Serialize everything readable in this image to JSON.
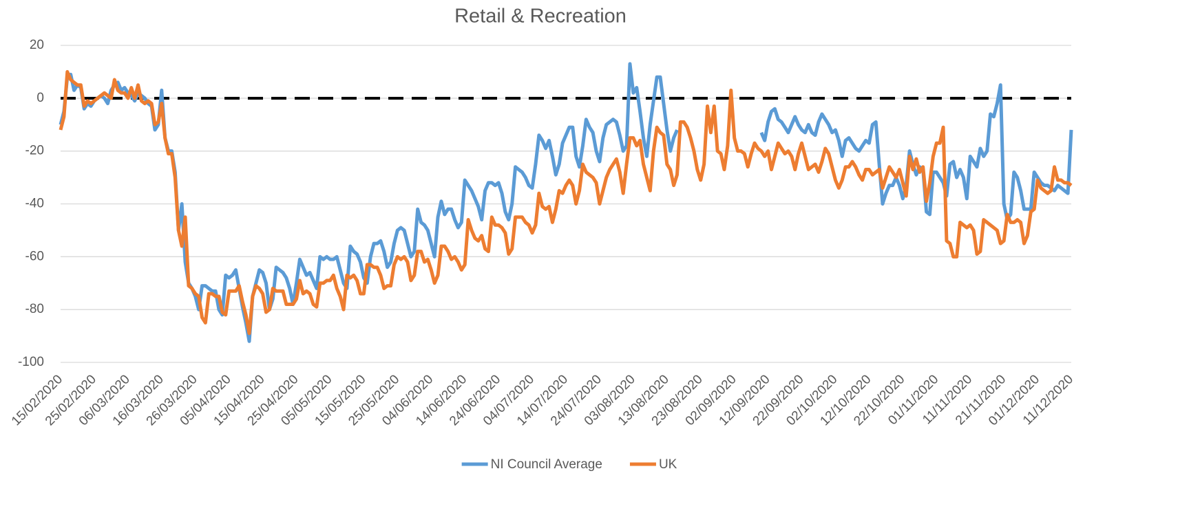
{
  "chart_data": {
    "type": "line",
    "title": "Retail & Recreation",
    "categories": [
      "15/02/2020",
      null,
      null,
      null,
      null,
      null,
      null,
      null,
      null,
      null,
      "25/02/2020",
      null,
      null,
      null,
      null,
      null,
      null,
      null,
      null,
      null,
      "06/03/2020",
      null,
      null,
      null,
      null,
      null,
      null,
      null,
      null,
      null,
      "16/03/2020",
      null,
      null,
      null,
      null,
      null,
      null,
      null,
      null,
      null,
      "26/03/2020",
      null,
      null,
      null,
      null,
      null,
      null,
      null,
      null,
      null,
      "05/04/2020",
      null,
      null,
      null,
      null,
      null,
      null,
      null,
      null,
      null,
      "15/04/2020",
      null,
      null,
      null,
      null,
      null,
      null,
      null,
      null,
      null,
      "25/04/2020",
      null,
      null,
      null,
      null,
      null,
      null,
      null,
      null,
      null,
      "05/05/2020",
      null,
      null,
      null,
      null,
      null,
      null,
      null,
      null,
      null,
      "15/05/2020",
      null,
      null,
      null,
      null,
      null,
      null,
      null,
      null,
      null,
      "25/05/2020",
      null,
      null,
      null,
      null,
      null,
      null,
      null,
      null,
      null,
      "04/06/2020",
      null,
      null,
      null,
      null,
      null,
      null,
      null,
      null,
      null,
      "14/06/2020",
      null,
      null,
      null,
      null,
      null,
      null,
      null,
      null,
      null,
      "24/06/2020",
      null,
      null,
      null,
      null,
      null,
      null,
      null,
      null,
      null,
      "04/07/2020",
      null,
      null,
      null,
      null,
      null,
      null,
      null,
      null,
      null,
      "14/07/2020",
      null,
      null,
      null,
      null,
      null,
      null,
      null,
      null,
      null,
      "24/07/2020",
      null,
      null,
      null,
      null,
      null,
      null,
      null,
      null,
      null,
      "03/08/2020",
      null,
      null,
      null,
      null,
      null,
      null,
      null,
      null,
      null,
      "13/08/2020",
      null,
      null,
      null,
      null,
      null,
      null,
      null,
      null,
      null,
      "23/08/2020",
      null,
      null,
      null,
      null,
      null,
      null,
      null,
      null,
      null,
      "02/09/2020",
      null,
      null,
      null,
      null,
      null,
      null,
      null,
      null,
      null,
      "12/09/2020",
      null,
      null,
      null,
      null,
      null,
      null,
      null,
      null,
      null,
      "22/09/2020",
      null,
      null,
      null,
      null,
      null,
      null,
      null,
      null,
      null,
      "02/10/2020",
      null,
      null,
      null,
      null,
      null,
      null,
      null,
      null,
      null,
      "12/10/2020",
      null,
      null,
      null,
      null,
      null,
      null,
      null,
      null,
      null,
      "22/10/2020",
      null,
      null,
      null,
      null,
      null,
      null,
      null,
      null,
      null,
      "01/11/2020",
      null,
      null,
      null,
      null,
      null,
      null,
      null,
      null,
      null,
      "11/11/2020",
      null,
      null,
      null,
      null,
      null,
      null,
      null,
      null,
      null,
      "21/11/2020",
      null,
      null,
      null,
      null,
      null,
      null,
      null,
      null,
      null,
      "01/12/2020",
      null,
      null,
      null,
      null,
      null,
      null,
      null,
      null,
      null,
      "11/12/2020"
    ],
    "series": [
      {
        "name": "NI Council Average",
        "color": "#5b9bd5",
        "values": [
          -10,
          -5,
          8,
          9,
          3,
          5,
          4,
          -4,
          -2,
          -3,
          -1,
          0,
          1,
          0,
          -2,
          3,
          5,
          6,
          3,
          4,
          2,
          1,
          -1,
          2,
          1,
          0,
          -2,
          -3,
          -12,
          -10,
          3,
          -15,
          -20,
          -20,
          -28,
          -50,
          -40,
          -62,
          -70,
          -72,
          -75,
          -80,
          -71,
          -71,
          -72,
          -73,
          -73,
          -80,
          -82,
          -67,
          -68,
          -67,
          -65,
          -72,
          -79,
          -85,
          -92,
          -75,
          -70,
          -65,
          -66,
          -70,
          -80,
          -76,
          -64,
          -65,
          -66,
          -68,
          -72,
          -78,
          -70,
          -61,
          -64,
          -67,
          -66,
          -69,
          -72,
          -60,
          -61,
          -60,
          -61,
          -61,
          -60,
          -65,
          -70,
          -72,
          -56,
          -58,
          -59,
          -62,
          -68,
          -70,
          -60,
          -55,
          -55,
          -54,
          -58,
          -64,
          -62,
          -55,
          -50,
          -49,
          -50,
          -55,
          -60,
          -58,
          -42,
          -47,
          -48,
          -50,
          -55,
          -60,
          -45,
          -39,
          -44,
          -42,
          -42,
          -46,
          -49,
          -47,
          -31,
          -33,
          -35,
          -38,
          -41,
          -46,
          -35,
          -32,
          -32,
          -33,
          -32,
          -36,
          -43,
          -46,
          -40,
          -26,
          -27,
          -28,
          -30,
          -33,
          -34,
          -25,
          -14,
          -16,
          -19,
          -16,
          -22,
          -29,
          -25,
          -17,
          -14,
          -11,
          -11,
          -22,
          -26,
          -18,
          -8,
          -11,
          -13,
          -20,
          -24,
          -15,
          -10,
          -9,
          -8,
          -9,
          -14,
          -20,
          -18,
          13,
          2,
          4,
          -5,
          -15,
          -22,
          -10,
          -1,
          8,
          8,
          -2,
          -12,
          -20,
          -15,
          -12,
          null,
          null,
          null,
          null,
          null,
          null,
          null,
          null,
          null,
          null,
          null,
          null,
          null,
          null,
          null,
          null,
          null,
          null,
          null,
          null,
          null,
          null,
          null,
          null,
          -13,
          -16,
          -9,
          -5,
          -4,
          -8,
          -9,
          -11,
          -13,
          -10,
          -7,
          -10,
          -12,
          -13,
          -10,
          -13,
          -14,
          -9,
          -6,
          -8,
          -10,
          -13,
          -12,
          -16,
          -22,
          -16,
          -15,
          -17,
          -19,
          -20,
          -18,
          -16,
          -17,
          -10,
          -9,
          -25,
          -40,
          -36,
          -33,
          -33,
          -30,
          -33,
          -38,
          -33,
          -20,
          -25,
          -29,
          -26,
          -27,
          -43,
          -44,
          -28,
          -28,
          -30,
          -32,
          -37,
          -25,
          -24,
          -30,
          -27,
          -30,
          -38,
          -22,
          -24,
          -26,
          -19,
          -22,
          -20,
          -6,
          -7,
          -2,
          5,
          -40,
          -46,
          -44,
          -28,
          -30,
          -35,
          -42,
          -42,
          -42,
          -28,
          -30,
          -32,
          -33,
          -33,
          -34,
          -35,
          -33,
          -34,
          -35,
          -36,
          -12
        ]
      },
      {
        "name": "UK",
        "color": "#ed7d31",
        "values": [
          -12,
          -7,
          10,
          7,
          6,
          5,
          5,
          -3,
          -1,
          -2,
          -1,
          0,
          1,
          2,
          1,
          0,
          7,
          3,
          2,
          2,
          0,
          4,
          0,
          5,
          -1,
          -2,
          -1,
          -2,
          -10,
          -9,
          -2,
          -15,
          -21,
          -21,
          -30,
          -50,
          -56,
          -45,
          -71,
          -72,
          -74,
          -75,
          -83,
          -85,
          -74,
          -74,
          -75,
          -75,
          -81,
          -82,
          -73,
          -73,
          -73,
          -71,
          -77,
          -82,
          -89,
          -75,
          -71,
          -72,
          -74,
          -81,
          -80,
          -72,
          -73,
          -73,
          -73,
          -78,
          -78,
          -78,
          -76,
          -69,
          -74,
          -73,
          -74,
          -78,
          -79,
          -70,
          -70,
          -69,
          -69,
          -67,
          -72,
          -75,
          -80,
          -67,
          -68,
          -67,
          -69,
          -74,
          -74,
          -63,
          -63,
          -64,
          -64,
          -67,
          -72,
          -71,
          -71,
          -63,
          -60,
          -61,
          -60,
          -62,
          -69,
          -67,
          -58,
          -58,
          -62,
          -61,
          -65,
          -70,
          -67,
          -56,
          -56,
          -58,
          -61,
          -60,
          -62,
          -65,
          -63,
          -46,
          -50,
          -53,
          -54,
          -52,
          -57,
          -58,
          -45,
          -48,
          -48,
          -49,
          -51,
          -59,
          -57,
          -45,
          -45,
          -45,
          -47,
          -48,
          -51,
          -48,
          -36,
          -41,
          -42,
          -41,
          -47,
          -42,
          -35,
          -36,
          -33,
          -31,
          -33,
          -40,
          -35,
          -25,
          -28,
          -29,
          -30,
          -32,
          -40,
          -35,
          -30,
          -27,
          -25,
          -23,
          -28,
          -36,
          -25,
          -15,
          -15,
          -18,
          -16,
          -25,
          -30,
          -35,
          -20,
          -11,
          -13,
          -14,
          -25,
          -27,
          -33,
          -29,
          -9,
          -9,
          -11,
          -15,
          -20,
          -27,
          -31,
          -25,
          -3,
          -13,
          -3,
          -20,
          -21,
          -27,
          -18,
          3,
          -15,
          -20,
          -20,
          -21,
          -26,
          -21,
          -17,
          -19,
          -20,
          -22,
          -20,
          -27,
          -22,
          -17,
          -19,
          -21,
          -20,
          -22,
          -27,
          -21,
          -17,
          -22,
          -27,
          -26,
          -25,
          -28,
          -24,
          -19,
          -21,
          -26,
          -31,
          -34,
          -31,
          -26,
          -26,
          -24,
          -26,
          -29,
          -31,
          -27,
          -27,
          -29,
          -28,
          -27,
          -34,
          -30,
          -26,
          -28,
          -30,
          -27,
          -32,
          -37,
          -22,
          -27,
          -23,
          -28,
          -26,
          -39,
          -32,
          -22,
          -17,
          -17,
          -11,
          -54,
          -55,
          -60,
          -60,
          -47,
          -48,
          -49,
          -48,
          -50,
          -59,
          -58,
          -46,
          -47,
          -48,
          -49,
          -50,
          -55,
          -54,
          -44,
          -47,
          -47,
          -46,
          -47,
          -55,
          -52,
          -43,
          -42,
          -31,
          -34,
          -35,
          -36,
          -35,
          -26,
          -31,
          -31,
          -32,
          -32,
          -33
        ]
      }
    ],
    "ylim": [
      -100,
      20
    ],
    "yticks": [
      -100,
      -80,
      -60,
      -40,
      -20,
      0,
      20
    ],
    "grid": true,
    "reference_line": {
      "value": 0,
      "style": "dashed"
    },
    "legend": "bottom"
  }
}
